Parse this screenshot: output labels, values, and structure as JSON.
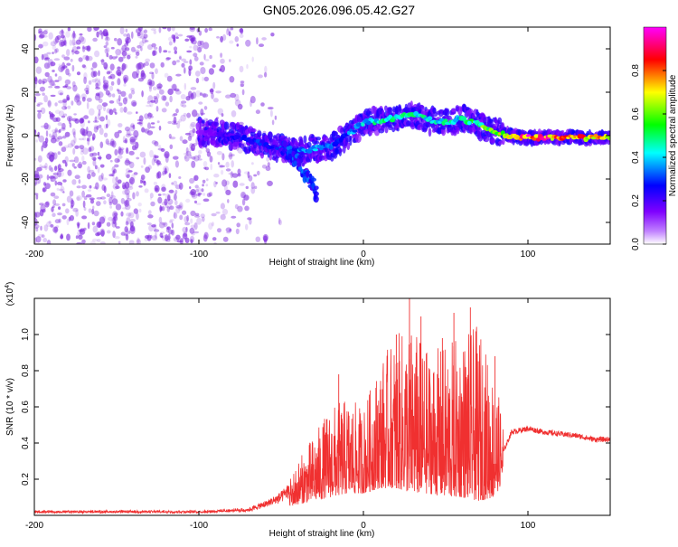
{
  "title": "GN05.2026.096.05.42.G27",
  "colors": {
    "snr_line": "#f03030",
    "spectrogram_points": "#8a2be2",
    "axis": "#000000",
    "background": "#ffffff"
  },
  "chart_data": [
    {
      "type": "heatmap",
      "name": "spectrogram",
      "xlabel": "Height of straight line (km)",
      "ylabel": "Frequency (Hz)",
      "xlim": [
        -200,
        150
      ],
      "ylim": [
        -50,
        50
      ],
      "xticks": [
        -200,
        -100,
        0,
        100
      ],
      "xtick_labels": [
        "-200",
        "-100",
        "0",
        "100"
      ],
      "yticks": [
        -40,
        -20,
        0,
        20,
        40
      ],
      "ytick_labels": [
        "-40",
        "-20",
        "0",
        "20",
        "40"
      ],
      "colorbar": {
        "label": "Normalized spectral amplitude",
        "range": [
          0,
          1
        ],
        "ticks": [
          0.0,
          0.2,
          0.4,
          0.6,
          0.8
        ],
        "tick_labels": [
          "0.0",
          "0.2",
          "0.4",
          "0.6",
          "0.8"
        ],
        "colormap": [
          "#ffffff",
          "#7f00ff",
          "#0000ff",
          "#00ffff",
          "#00ff00",
          "#ffff00",
          "#ff0000",
          "#ff00ff"
        ]
      },
      "noise_region_x": [
        -200,
        -60
      ],
      "ridge": {
        "x": [
          -100,
          -90,
          -80,
          -70,
          -60,
          -50,
          -40,
          -30,
          -20,
          -10,
          0,
          10,
          20,
          30,
          40,
          50,
          60,
          70,
          80,
          90,
          100,
          110,
          120,
          130,
          140,
          150
        ],
        "freq": [
          2,
          1,
          0,
          -2,
          -4,
          -6,
          -7,
          -6,
          -5,
          0,
          6,
          7,
          8,
          10,
          7,
          6,
          8,
          5,
          2,
          0,
          -1,
          -1,
          -1,
          -1,
          -1,
          -1
        ],
        "amplitude": [
          0.15,
          0.2,
          0.25,
          0.3,
          0.3,
          0.3,
          0.35,
          0.4,
          0.35,
          0.35,
          0.45,
          0.5,
          0.5,
          0.55,
          0.45,
          0.5,
          0.5,
          0.6,
          0.7,
          0.85,
          0.95,
          0.95,
          0.9,
          0.85,
          0.8,
          0.75
        ]
      },
      "branch": {
        "x": [
          -50,
          -40,
          -35,
          -30,
          -28
        ],
        "freq": [
          -5,
          -12,
          -18,
          -24,
          -30
        ]
      }
    },
    {
      "type": "line",
      "name": "snr",
      "xlabel": "Height of straight line (km)",
      "ylabel": "SNR (10 * v/v)",
      "scale_note": "(x10^4)",
      "xlim": [
        -200,
        150
      ],
      "ylim": [
        0,
        1.2
      ],
      "xticks": [
        -200,
        -100,
        0,
        100
      ],
      "xtick_labels": [
        "-200",
        "-100",
        "0",
        "100"
      ],
      "yticks": [
        0.2,
        0.4,
        0.6,
        0.8,
        1.0
      ],
      "ytick_labels": [
        "0.2",
        "0.4",
        "0.6",
        "0.8",
        "1.0"
      ],
      "baseline": [
        [
          -200,
          0.02
        ],
        [
          -100,
          0.02
        ],
        [
          -70,
          0.03
        ],
        [
          -60,
          0.06
        ],
        [
          -50,
          0.1
        ],
        [
          -45,
          0.14
        ]
      ],
      "envelope": {
        "x": [
          -45,
          -40,
          -30,
          -20,
          -10,
          0,
          10,
          20,
          30,
          40,
          50,
          60,
          70,
          80,
          85
        ],
        "max": [
          0.2,
          0.3,
          0.45,
          0.6,
          0.65,
          0.6,
          0.85,
          1.0,
          1.05,
          0.9,
          0.95,
          1.0,
          1.05,
          0.75,
          0.55
        ],
        "min": [
          0.05,
          0.06,
          0.08,
          0.1,
          0.12,
          0.12,
          0.15,
          0.15,
          0.12,
          0.12,
          0.1,
          0.1,
          0.08,
          0.1,
          0.2
        ]
      },
      "peaks": [
        [
          -15,
          0.78
        ],
        [
          20,
          1.0
        ],
        [
          28,
          1.2
        ],
        [
          35,
          1.1
        ],
        [
          48,
          0.98
        ],
        [
          55,
          1.12
        ],
        [
          65,
          1.15
        ],
        [
          80,
          0.88
        ]
      ],
      "tail": [
        [
          85,
          0.35
        ],
        [
          90,
          0.46
        ],
        [
          95,
          0.47
        ],
        [
          100,
          0.48
        ],
        [
          110,
          0.46
        ],
        [
          120,
          0.45
        ],
        [
          130,
          0.44
        ],
        [
          140,
          0.42
        ],
        [
          150,
          0.42
        ]
      ]
    }
  ]
}
